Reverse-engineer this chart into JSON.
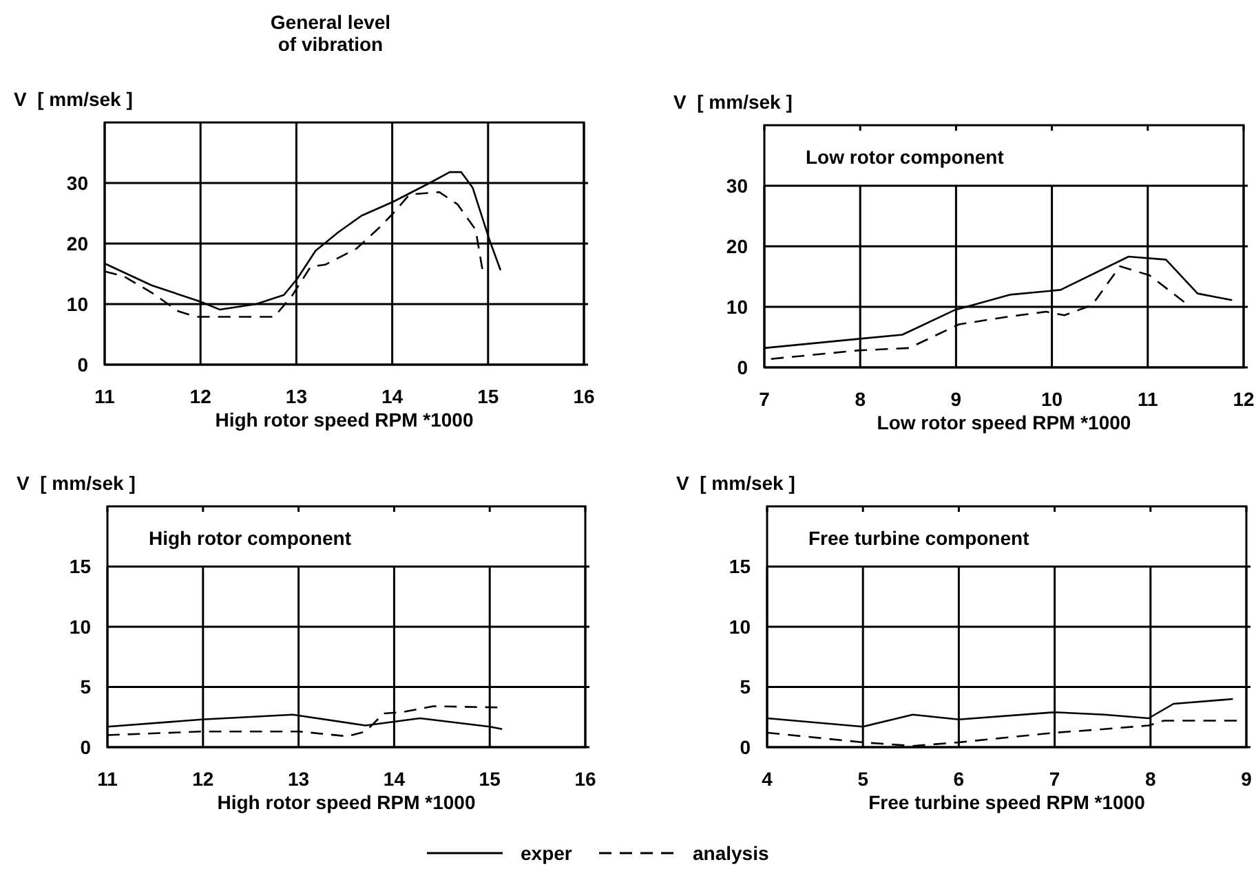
{
  "chart_data": [
    {
      "type": "line",
      "title": "General level\nof vibration",
      "ylabel": "V  [ mm/sek ]",
      "xlabel": "High rotor speed RPM *1000",
      "xlim": [
        11,
        16
      ],
      "xticks": [
        11,
        12,
        13,
        14,
        15,
        16
      ],
      "ylim": [
        0,
        40
      ],
      "yticks": [
        0,
        10,
        20,
        30
      ],
      "grid": true,
      "series": [
        {
          "color": "#000000",
          "line_style": "solid",
          "x": [
            11,
            11.49,
            12,
            12.2,
            12.58,
            12.87,
            13.01,
            13.2,
            13.44,
            13.68,
            14.01,
            14.39,
            14.6,
            14.72,
            14.84,
            15.01,
            15.13
          ],
          "values": [
            16.7,
            13.1,
            10.4,
            9.1,
            10,
            11.5,
            14.2,
            18.8,
            21.9,
            24.6,
            26.9,
            30,
            31.8,
            31.8,
            29.2,
            20.8,
            15.6
          ]
        },
        {
          "color": "#000000",
          "line_style": "dashed",
          "x": [
            11,
            11.2,
            11.49,
            11.77,
            11.96,
            12.77,
            12.96,
            13.15,
            13.3,
            13.63,
            13.87,
            14.01,
            14.18,
            14.49,
            14.68,
            14.87,
            14.94
          ],
          "values": [
            15.4,
            14.6,
            11.9,
            8.8,
            7.9,
            7.9,
            11.5,
            16.2,
            16.5,
            19.2,
            22.7,
            25,
            28.1,
            28.5,
            26.5,
            22.3,
            15.8
          ]
        }
      ]
    },
    {
      "type": "line",
      "title": "Low rotor component",
      "ylabel": "V  [ mm/sek ]",
      "xlabel": "Low rotor speed RPM *1000",
      "xlim": [
        7,
        12
      ],
      "xticks": [
        7,
        8,
        9,
        10,
        11,
        12
      ],
      "ylim": [
        0,
        40
      ],
      "yticks": [
        0,
        10,
        20,
        30
      ],
      "grid": true,
      "series": [
        {
          "color": "#000000",
          "line_style": "solid",
          "x": [
            7,
            7.98,
            8.44,
            8.99,
            9.56,
            10.09,
            10.8,
            11.19,
            11.52,
            11.88
          ],
          "values": [
            3.2,
            4.7,
            5.4,
            9.5,
            12,
            12.8,
            18.3,
            17.8,
            12.2,
            11.1
          ]
        },
        {
          "color": "#000000",
          "line_style": "dashed",
          "x": [
            7.07,
            7.98,
            8.51,
            9.03,
            9.51,
            9.94,
            10.13,
            10.42,
            10.71,
            11.02,
            11.38
          ],
          "values": [
            1.4,
            2.8,
            3.2,
            7.1,
            8.3,
            9.2,
            8.6,
            10.3,
            16.7,
            15.2,
            10.8
          ]
        }
      ]
    },
    {
      "type": "line",
      "title": "High rotor component",
      "ylabel": "V  [ mm/sek ]",
      "xlabel": "High rotor speed RPM *1000",
      "xlim": [
        11,
        16
      ],
      "xticks": [
        11,
        12,
        13,
        14,
        15,
        16
      ],
      "ylim": [
        0,
        20
      ],
      "yticks": [
        0,
        5,
        10,
        15
      ],
      "grid": true,
      "series": [
        {
          "color": "#000000",
          "line_style": "solid",
          "x": [
            11,
            11.99,
            12.94,
            13.7,
            14.27,
            15,
            15.13
          ],
          "values": [
            1.7,
            2.3,
            2.7,
            1.8,
            2.4,
            1.7,
            1.5
          ]
        },
        {
          "color": "#000000",
          "line_style": "dashed",
          "x": [
            11,
            11.99,
            13.01,
            13.51,
            13.7,
            13.89,
            14.08,
            14.41,
            15.08
          ],
          "values": [
            1,
            1.3,
            1.3,
            0.9,
            1.3,
            2.8,
            2.9,
            3.4,
            3.3
          ]
        }
      ]
    },
    {
      "type": "line",
      "title": "Free turbine component",
      "ylabel": "V  [ mm/sek ]",
      "xlabel": "Free turbine speed RPM *1000",
      "xlim": [
        4,
        9
      ],
      "xticks": [
        4,
        5,
        6,
        7,
        8,
        9
      ],
      "ylim": [
        0,
        20
      ],
      "yticks": [
        0,
        5,
        10,
        15
      ],
      "grid": true,
      "legend": "bottom",
      "series": [
        {
          "name": "exper",
          "color": "#000000",
          "line_style": "solid",
          "x": [
            4,
            5,
            5.52,
            6,
            7,
            7.52,
            7.98,
            8.24,
            8.86
          ],
          "values": [
            2.4,
            1.7,
            2.7,
            2.3,
            2.9,
            2.7,
            2.4,
            3.6,
            4
          ]
        },
        {
          "name": "analysis",
          "color": "#000000",
          "line_style": "dashed",
          "x": [
            4,
            5,
            5.52,
            6,
            7,
            7.52,
            7.98,
            8.14,
            8.9
          ],
          "values": [
            1.2,
            0.4,
            0.1,
            0.4,
            1.2,
            1.5,
            1.8,
            2.2,
            2.2
          ]
        }
      ]
    }
  ]
}
